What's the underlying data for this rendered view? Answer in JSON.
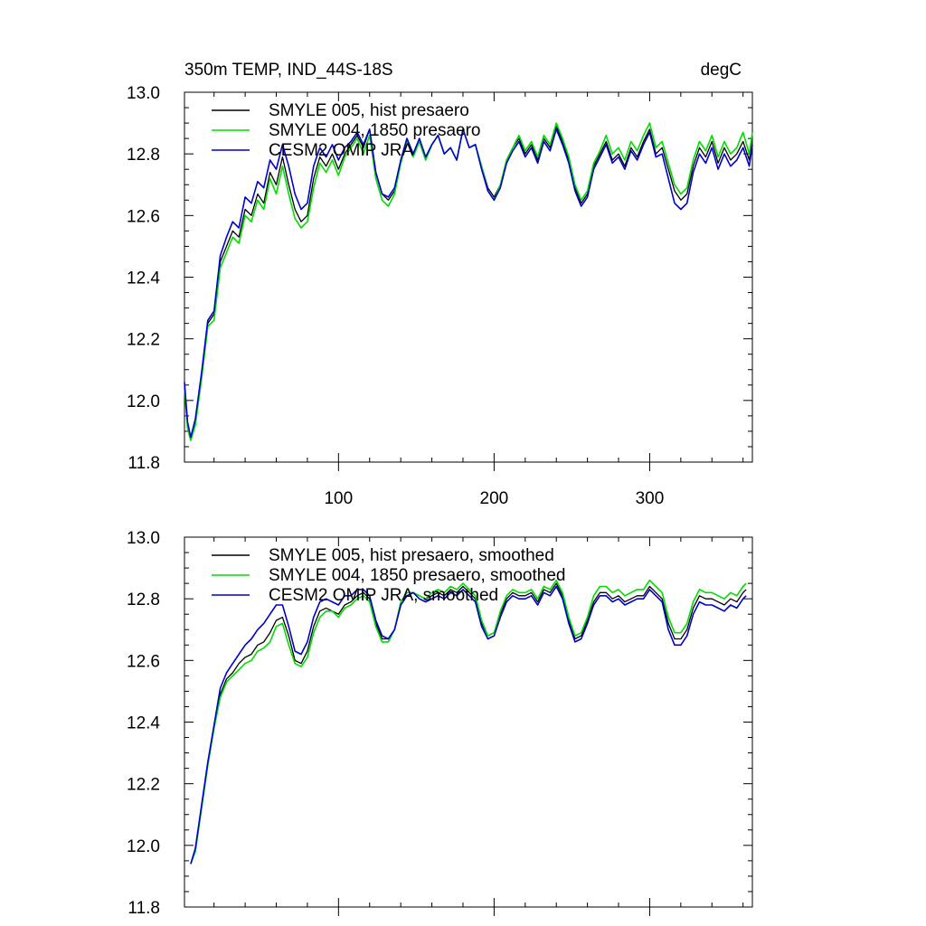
{
  "header": {
    "title": "350m TEMP, IND_44S-18S",
    "units": "degC"
  },
  "colors": {
    "hist": "#000000",
    "p1850": "#00dd00",
    "omip": "#0000cc"
  },
  "chart_data": [
    {
      "type": "line",
      "panel": "top",
      "xlim": [
        1,
        366
      ],
      "ylim": [
        11.8,
        13.0
      ],
      "x_ticks": [
        "100",
        "200",
        "300"
      ],
      "y_ticks": [
        "11.8",
        "12.0",
        "12.2",
        "12.4",
        "12.6",
        "12.8",
        "13.0"
      ],
      "legend": [
        "SMYLE 005, hist presaero",
        "SMYLE 004, 1850 presaero",
        "CESM2 OMIP JRA"
      ],
      "x": [
        1,
        3,
        5,
        8,
        12,
        16,
        20,
        24,
        28,
        32,
        36,
        40,
        44,
        48,
        52,
        56,
        60,
        64,
        68,
        72,
        76,
        80,
        84,
        88,
        92,
        96,
        100,
        104,
        108,
        112,
        116,
        120,
        124,
        128,
        132,
        136,
        140,
        144,
        148,
        152,
        156,
        160,
        164,
        168,
        172,
        176,
        180,
        184,
        188,
        192,
        196,
        200,
        204,
        208,
        212,
        216,
        220,
        224,
        228,
        232,
        236,
        240,
        244,
        248,
        252,
        256,
        260,
        264,
        268,
        272,
        276,
        280,
        284,
        288,
        292,
        296,
        300,
        304,
        308,
        312,
        316,
        320,
        324,
        328,
        332,
        336,
        340,
        344,
        348,
        352,
        356,
        360,
        364,
        366
      ],
      "series": [
        {
          "name": "SMYLE 005, hist presaero",
          "values": [
            12.05,
            11.92,
            11.88,
            11.93,
            12.08,
            12.25,
            12.28,
            12.45,
            12.5,
            12.55,
            12.53,
            12.62,
            12.6,
            12.67,
            12.64,
            12.74,
            12.7,
            12.79,
            12.7,
            12.62,
            12.58,
            12.6,
            12.72,
            12.79,
            12.76,
            12.8,
            12.75,
            12.8,
            12.83,
            12.86,
            12.82,
            12.88,
            12.74,
            12.67,
            12.65,
            12.68,
            12.78,
            12.85,
            12.8,
            12.84,
            12.78,
            12.83,
            12.86,
            12.8,
            12.82,
            12.78,
            12.88,
            12.82,
            12.83,
            12.76,
            12.69,
            12.66,
            12.7,
            12.78,
            12.82,
            12.85,
            12.8,
            12.83,
            12.78,
            12.85,
            12.82,
            12.89,
            12.84,
            12.78,
            12.69,
            12.64,
            12.67,
            12.76,
            12.8,
            12.84,
            12.78,
            12.8,
            12.76,
            12.82,
            12.79,
            12.84,
            12.88,
            12.8,
            12.82,
            12.75,
            12.68,
            12.65,
            12.67,
            12.76,
            12.82,
            12.79,
            12.84,
            12.77,
            12.82,
            12.78,
            12.8,
            12.84,
            12.78,
            12.85
          ]
        },
        {
          "name": "SMYLE 004, 1850 presaero",
          "values": [
            12.04,
            11.91,
            11.87,
            11.92,
            12.07,
            12.24,
            12.26,
            12.43,
            12.48,
            12.53,
            12.51,
            12.6,
            12.58,
            12.65,
            12.62,
            12.72,
            12.67,
            12.76,
            12.67,
            12.59,
            12.56,
            12.58,
            12.69,
            12.77,
            12.74,
            12.78,
            12.73,
            12.79,
            12.82,
            12.85,
            12.8,
            12.86,
            12.72,
            12.65,
            12.63,
            12.67,
            12.77,
            12.84,
            12.79,
            12.84,
            12.78,
            12.83,
            12.86,
            12.8,
            12.82,
            12.78,
            12.88,
            12.82,
            12.83,
            12.76,
            12.68,
            12.65,
            12.7,
            12.78,
            12.82,
            12.86,
            12.81,
            12.84,
            12.79,
            12.86,
            12.83,
            12.9,
            12.85,
            12.79,
            12.7,
            12.65,
            12.68,
            12.77,
            12.81,
            12.86,
            12.8,
            12.82,
            12.78,
            12.84,
            12.81,
            12.86,
            12.9,
            12.82,
            12.84,
            12.77,
            12.7,
            12.67,
            12.69,
            12.78,
            12.84,
            12.81,
            12.86,
            12.79,
            12.84,
            12.8,
            12.82,
            12.87,
            12.8,
            12.87
          ]
        },
        {
          "name": "CESM2 OMIP JRA",
          "values": [
            12.06,
            11.93,
            11.88,
            11.94,
            12.09,
            12.26,
            12.29,
            12.47,
            12.53,
            12.58,
            12.56,
            12.66,
            12.64,
            12.71,
            12.69,
            12.78,
            12.75,
            12.83,
            12.76,
            12.67,
            12.62,
            12.64,
            12.76,
            12.82,
            12.79,
            12.83,
            12.78,
            12.82,
            12.84,
            12.87,
            12.83,
            12.88,
            12.74,
            12.67,
            12.66,
            12.69,
            12.78,
            12.85,
            12.8,
            12.85,
            12.79,
            12.83,
            12.86,
            12.8,
            12.82,
            12.78,
            12.88,
            12.82,
            12.83,
            12.75,
            12.68,
            12.65,
            12.69,
            12.77,
            12.81,
            12.84,
            12.79,
            12.82,
            12.77,
            12.84,
            12.81,
            12.88,
            12.83,
            12.77,
            12.68,
            12.63,
            12.66,
            12.75,
            12.79,
            12.83,
            12.77,
            12.79,
            12.75,
            12.81,
            12.78,
            12.83,
            12.87,
            12.79,
            12.8,
            12.72,
            12.64,
            12.62,
            12.64,
            12.74,
            12.8,
            12.77,
            12.82,
            12.75,
            12.8,
            12.76,
            12.78,
            12.82,
            12.76,
            12.83
          ]
        }
      ]
    },
    {
      "type": "line",
      "panel": "bottom",
      "xlim": [
        1,
        366
      ],
      "ylim": [
        11.8,
        13.0
      ],
      "y_ticks": [
        "11.8",
        "12.0",
        "12.2",
        "12.4",
        "12.6",
        "12.8",
        "13.0"
      ],
      "legend": [
        "SMYLE 005, hist presaero, smoothed",
        "SMYLE 004, 1850 presaero, smoothed",
        "CESM2 OMIP JRA, smoothed"
      ],
      "x": [
        5,
        8,
        12,
        16,
        20,
        24,
        28,
        32,
        36,
        40,
        44,
        48,
        52,
        56,
        60,
        64,
        68,
        72,
        76,
        80,
        84,
        88,
        92,
        96,
        100,
        104,
        108,
        112,
        116,
        120,
        124,
        128,
        132,
        136,
        140,
        144,
        148,
        152,
        156,
        160,
        164,
        168,
        172,
        176,
        180,
        184,
        188,
        192,
        196,
        200,
        204,
        208,
        212,
        216,
        220,
        224,
        228,
        232,
        236,
        240,
        244,
        248,
        252,
        256,
        260,
        264,
        268,
        272,
        276,
        280,
        284,
        288,
        292,
        296,
        300,
        304,
        308,
        312,
        316,
        320,
        324,
        328,
        332,
        336,
        340,
        344,
        348,
        352,
        356,
        360,
        362
      ],
      "series": [
        {
          "name": "SMYLE 005, hist presaero, smoothed",
          "values": [
            11.94,
            11.98,
            12.12,
            12.26,
            12.38,
            12.49,
            12.54,
            12.56,
            12.59,
            12.61,
            12.62,
            12.65,
            12.66,
            12.69,
            12.73,
            12.74,
            12.68,
            12.6,
            12.59,
            12.63,
            12.71,
            12.76,
            12.77,
            12.76,
            12.75,
            12.78,
            12.79,
            12.81,
            12.82,
            12.8,
            12.72,
            12.67,
            12.67,
            12.7,
            12.78,
            12.81,
            12.82,
            12.81,
            12.8,
            12.81,
            12.82,
            12.81,
            12.83,
            12.82,
            12.84,
            12.82,
            12.8,
            12.72,
            12.68,
            12.69,
            12.75,
            12.8,
            12.82,
            12.81,
            12.81,
            12.82,
            12.79,
            12.83,
            12.82,
            12.85,
            12.81,
            12.73,
            12.67,
            12.68,
            12.73,
            12.79,
            12.82,
            12.82,
            12.8,
            12.81,
            12.79,
            12.8,
            12.81,
            12.81,
            12.84,
            12.82,
            12.8,
            12.72,
            12.67,
            12.67,
            12.7,
            12.77,
            12.81,
            12.8,
            12.8,
            12.79,
            12.78,
            12.8,
            12.79,
            12.82,
            12.83
          ]
        },
        {
          "name": "SMYLE 004, 1850 presaero, smoothed",
          "values": [
            11.94,
            11.98,
            12.12,
            12.26,
            12.38,
            12.48,
            12.53,
            12.55,
            12.57,
            12.59,
            12.6,
            12.63,
            12.64,
            12.66,
            12.71,
            12.72,
            12.65,
            12.59,
            12.58,
            12.61,
            12.69,
            12.74,
            12.76,
            12.76,
            12.74,
            12.77,
            12.78,
            12.8,
            12.81,
            12.79,
            12.71,
            12.66,
            12.66,
            12.7,
            12.79,
            12.82,
            12.82,
            12.81,
            12.8,
            12.82,
            12.83,
            12.82,
            12.84,
            12.83,
            12.85,
            12.83,
            12.81,
            12.73,
            12.68,
            12.69,
            12.76,
            12.81,
            12.83,
            12.82,
            12.82,
            12.83,
            12.8,
            12.84,
            12.83,
            12.86,
            12.82,
            12.74,
            12.68,
            12.69,
            12.74,
            12.81,
            12.84,
            12.84,
            12.82,
            12.83,
            12.81,
            12.82,
            12.83,
            12.83,
            12.86,
            12.84,
            12.82,
            12.74,
            12.69,
            12.69,
            12.72,
            12.79,
            12.83,
            12.82,
            12.82,
            12.81,
            12.8,
            12.82,
            12.81,
            12.84,
            12.85
          ]
        },
        {
          "name": "CESM2 OMIP JRA, smoothed",
          "values": [
            11.94,
            11.99,
            12.13,
            12.27,
            12.39,
            12.51,
            12.56,
            12.59,
            12.62,
            12.65,
            12.67,
            12.7,
            12.72,
            12.75,
            12.78,
            12.78,
            12.71,
            12.63,
            12.62,
            12.66,
            12.74,
            12.79,
            12.8,
            12.79,
            12.78,
            12.81,
            12.81,
            12.83,
            12.83,
            12.81,
            12.73,
            12.68,
            12.67,
            12.7,
            12.78,
            12.81,
            12.82,
            12.8,
            12.79,
            12.8,
            12.81,
            12.8,
            12.82,
            12.81,
            12.83,
            12.81,
            12.79,
            12.71,
            12.67,
            12.68,
            12.74,
            12.79,
            12.81,
            12.8,
            12.8,
            12.81,
            12.78,
            12.82,
            12.81,
            12.84,
            12.8,
            12.72,
            12.66,
            12.67,
            12.72,
            12.78,
            12.81,
            12.81,
            12.79,
            12.8,
            12.78,
            12.79,
            12.8,
            12.8,
            12.83,
            12.81,
            12.79,
            12.7,
            12.65,
            12.65,
            12.68,
            12.75,
            12.79,
            12.78,
            12.78,
            12.77,
            12.76,
            12.78,
            12.77,
            12.8,
            12.81
          ]
        }
      ]
    }
  ]
}
